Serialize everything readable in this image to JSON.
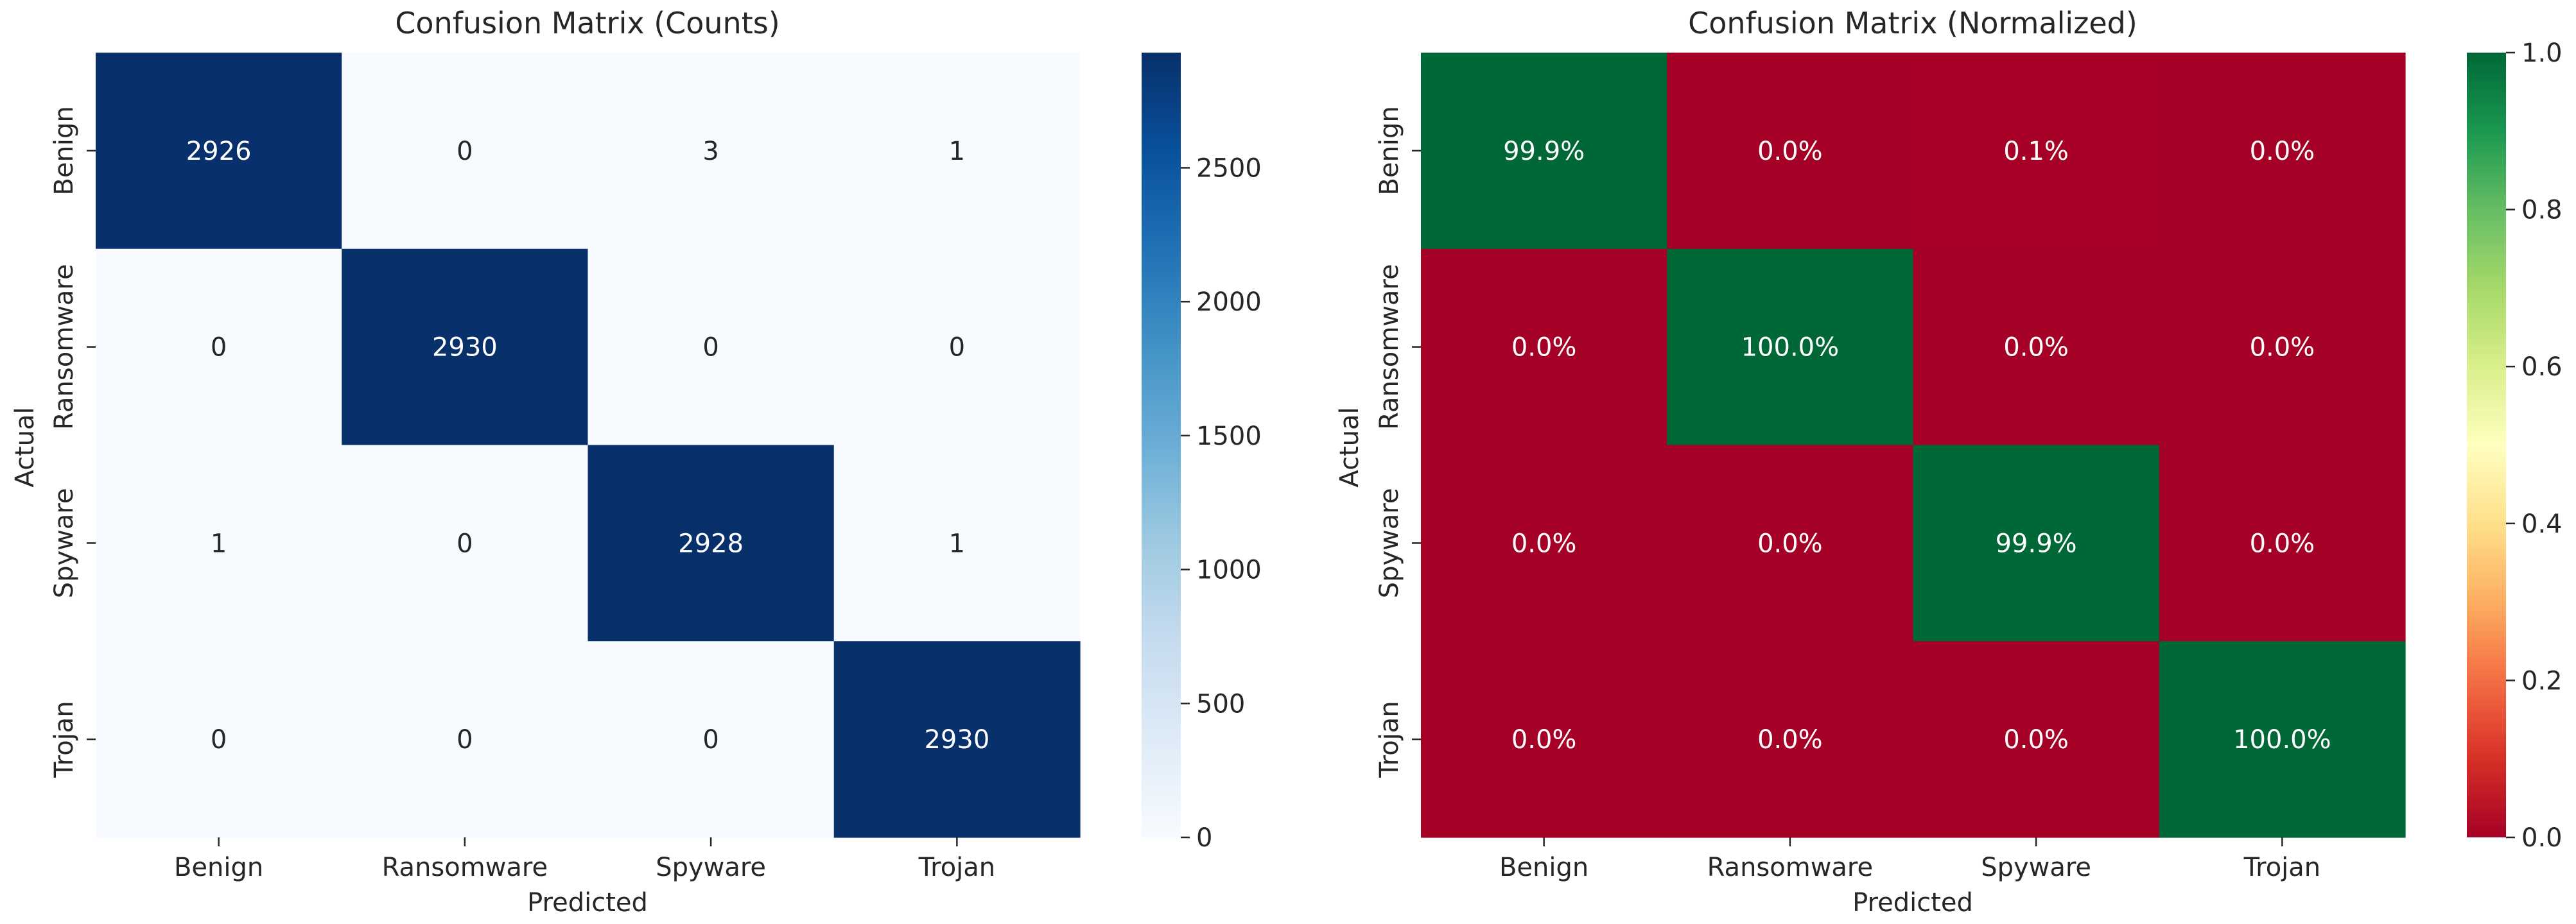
{
  "chart_data": [
    {
      "type": "heatmap",
      "title": "Confusion Matrix (Counts)",
      "xlabel": "Predicted",
      "ylabel": "Actual",
      "x_categories": [
        "Benign",
        "Ransomware",
        "Spyware",
        "Trojan"
      ],
      "y_categories": [
        "Benign",
        "Ransomware",
        "Spyware",
        "Trojan"
      ],
      "values": [
        [
          2926,
          0,
          3,
          1
        ],
        [
          0,
          2930,
          0,
          0
        ],
        [
          1,
          0,
          2928,
          1
        ],
        [
          0,
          0,
          0,
          2930
        ]
      ],
      "cell_labels": [
        [
          "2926",
          "0",
          "3",
          "1"
        ],
        [
          "0",
          "2930",
          "0",
          "0"
        ],
        [
          "1",
          "0",
          "2928",
          "1"
        ],
        [
          "0",
          "0",
          "0",
          "2930"
        ]
      ],
      "colormap": "Blues",
      "vmin": 0,
      "vmax": 2930,
      "colorbar_ticks": [
        0,
        500,
        1000,
        1500,
        2000,
        2500
      ],
      "colorbar_tick_labels": [
        "0",
        "500",
        "1000",
        "1500",
        "2000",
        "2500"
      ]
    },
    {
      "type": "heatmap",
      "title": "Confusion Matrix (Normalized)",
      "xlabel": "Predicted",
      "ylabel": "Actual",
      "x_categories": [
        "Benign",
        "Ransomware",
        "Spyware",
        "Trojan"
      ],
      "y_categories": [
        "Benign",
        "Ransomware",
        "Spyware",
        "Trojan"
      ],
      "values": [
        [
          0.999,
          0.0,
          0.001,
          0.0
        ],
        [
          0.0,
          1.0,
          0.0,
          0.0
        ],
        [
          0.0,
          0.0,
          0.999,
          0.0
        ],
        [
          0.0,
          0.0,
          0.0,
          1.0
        ]
      ],
      "cell_labels": [
        [
          "99.9%",
          "0.0%",
          "0.1%",
          "0.0%"
        ],
        [
          "0.0%",
          "100.0%",
          "0.0%",
          "0.0%"
        ],
        [
          "0.0%",
          "0.0%",
          "99.9%",
          "0.0%"
        ],
        [
          "0.0%",
          "0.0%",
          "0.0%",
          "100.0%"
        ]
      ],
      "colormap": "RdYlGn",
      "vmin": 0,
      "vmax": 1,
      "colorbar_ticks": [
        0,
        0.2,
        0.4,
        0.6,
        0.8,
        1.0
      ],
      "colorbar_tick_labels": [
        "0.0",
        "0.2",
        "0.4",
        "0.6",
        "0.8",
        "1.0"
      ]
    }
  ]
}
